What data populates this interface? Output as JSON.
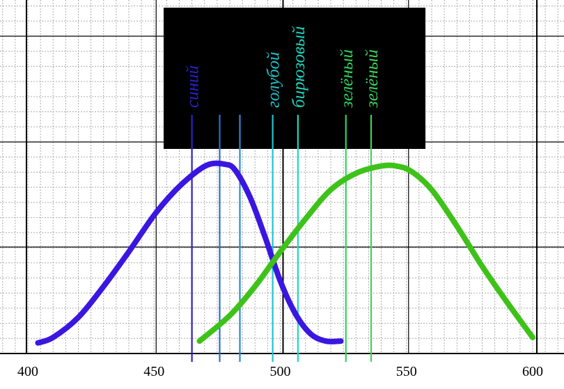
{
  "chart_data": {
    "type": "line",
    "title": "",
    "xlabel": "",
    "ylabel": "",
    "xlim": [
      400,
      600
    ],
    "x_ticks": [
      400,
      450,
      500,
      550,
      600
    ],
    "grid": true,
    "series": [
      {
        "color": "#3a16e0",
        "x": [
          404,
          410,
          420,
          430,
          440,
          450,
          458,
          466,
          472,
          478,
          482,
          488,
          494,
          500,
          506,
          512,
          518,
          524
        ],
        "y": [
          0.02,
          0.05,
          0.16,
          0.33,
          0.52,
          0.72,
          0.85,
          0.95,
          1.0,
          1.0,
          0.97,
          0.82,
          0.6,
          0.36,
          0.18,
          0.07,
          0.03,
          0.03
        ]
      },
      {
        "color": "#3ec21a",
        "x": [
          468,
          480,
          490,
          500,
          510,
          520,
          530,
          540,
          546,
          552,
          560,
          570,
          580,
          590,
          600
        ],
        "y": [
          0.03,
          0.17,
          0.33,
          0.52,
          0.7,
          0.86,
          0.95,
          0.99,
          0.99,
          0.96,
          0.86,
          0.66,
          0.44,
          0.24,
          0.05
        ]
      }
    ],
    "vertical_lines": [
      {
        "x": 465,
        "color": "#2a22c8",
        "label": "синий"
      },
      {
        "x": 476,
        "color": "#2b6fcf",
        "label": ""
      },
      {
        "x": 484,
        "color": "#2b8ad0",
        "label": ""
      },
      {
        "x": 497,
        "color": "#20c4cc",
        "label": "голубой"
      },
      {
        "x": 507,
        "color": "#1ed7c0",
        "label": "бирюзовый"
      },
      {
        "x": 526,
        "color": "#2fd45e",
        "label": "зелёный"
      },
      {
        "x": 536,
        "color": "#3fd35a",
        "label": "зелёный"
      }
    ]
  }
}
